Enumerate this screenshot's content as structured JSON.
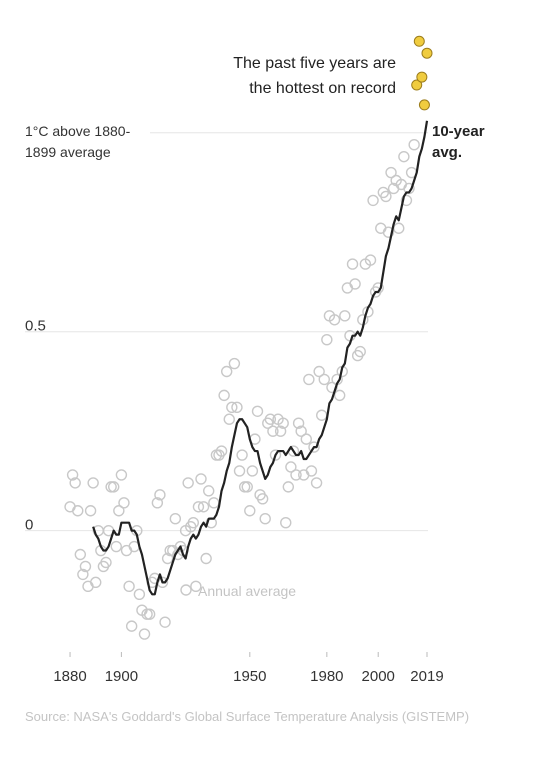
{
  "chart_data": {
    "type": "scatter_line",
    "x": [
      1880,
      1881,
      1882,
      1883,
      1884,
      1885,
      1886,
      1887,
      1888,
      1889,
      1890,
      1891,
      1892,
      1893,
      1894,
      1895,
      1896,
      1897,
      1898,
      1899,
      1900,
      1901,
      1902,
      1903,
      1904,
      1905,
      1906,
      1907,
      1908,
      1909,
      1910,
      1911,
      1912,
      1913,
      1914,
      1915,
      1916,
      1917,
      1918,
      1919,
      1920,
      1921,
      1922,
      1923,
      1924,
      1925,
      1926,
      1927,
      1928,
      1929,
      1930,
      1931,
      1932,
      1933,
      1934,
      1935,
      1936,
      1937,
      1938,
      1939,
      1940,
      1941,
      1942,
      1943,
      1944,
      1945,
      1946,
      1947,
      1948,
      1949,
      1950,
      1951,
      1952,
      1953,
      1954,
      1955,
      1956,
      1957,
      1958,
      1959,
      1960,
      1961,
      1962,
      1963,
      1964,
      1965,
      1966,
      1967,
      1968,
      1969,
      1970,
      1971,
      1972,
      1973,
      1974,
      1975,
      1976,
      1977,
      1978,
      1979,
      1980,
      1981,
      1982,
      1983,
      1984,
      1985,
      1986,
      1987,
      1988,
      1989,
      1990,
      1991,
      1992,
      1993,
      1994,
      1995,
      1996,
      1997,
      1998,
      1999,
      2000,
      2001,
      2002,
      2003,
      2004,
      2005,
      2006,
      2007,
      2008,
      2009,
      2010,
      2011,
      2012,
      2013,
      2014,
      2015,
      2016,
      2017,
      2018,
      2019
    ],
    "series": [
      {
        "name": "Annual average",
        "color": "#c8c8c8",
        "highlight_color": "#f0cc3f",
        "highlight_count": 5,
        "values": [
          0.06,
          0.14,
          0.12,
          0.05,
          -0.06,
          -0.11,
          -0.09,
          -0.14,
          0.05,
          0.12,
          -0.13,
          0.0,
          -0.05,
          -0.09,
          -0.08,
          0.0,
          0.11,
          0.11,
          -0.04,
          0.05,
          0.14,
          0.07,
          -0.05,
          -0.14,
          -0.24,
          -0.04,
          0.0,
          -0.16,
          -0.2,
          -0.26,
          -0.21,
          -0.21,
          -0.13,
          -0.12,
          0.07,
          0.09,
          -0.13,
          -0.23,
          -0.07,
          -0.05,
          -0.05,
          0.03,
          -0.06,
          -0.04,
          -0.05,
          0.0,
          0.12,
          0.01,
          0.02,
          -0.14,
          0.06,
          0.13,
          0.06,
          -0.07,
          0.1,
          0.02,
          0.07,
          0.19,
          0.19,
          0.2,
          0.34,
          0.4,
          0.28,
          0.31,
          0.42,
          0.31,
          0.15,
          0.19,
          0.11,
          0.11,
          0.05,
          0.15,
          0.23,
          0.3,
          0.09,
          0.08,
          0.03,
          0.27,
          0.28,
          0.25,
          0.19,
          0.28,
          0.25,
          0.27,
          0.02,
          0.11,
          0.16,
          0.2,
          0.14,
          0.27,
          0.25,
          0.14,
          0.23,
          0.38,
          0.15,
          0.21,
          0.12,
          0.4,
          0.29,
          0.38,
          0.48,
          0.54,
          0.36,
          0.53,
          0.38,
          0.34,
          0.4,
          0.54,
          0.61,
          0.49,
          0.67,
          0.62,
          0.44,
          0.45,
          0.53,
          0.67,
          0.55,
          0.68,
          0.83,
          0.6,
          0.61,
          0.76,
          0.85,
          0.84,
          0.75,
          0.9,
          0.86,
          0.88,
          0.76,
          0.87,
          0.94,
          0.83,
          0.86,
          0.9,
          0.97,
          1.12,
          1.23,
          1.14,
          1.07,
          1.2
        ]
      },
      {
        "name": "10-year avg.",
        "color": "#222222",
        "values": [
          null,
          null,
          null,
          null,
          null,
          null,
          null,
          null,
          null,
          0.01,
          -0.01,
          -0.02,
          -0.04,
          -0.05,
          -0.05,
          -0.04,
          -0.02,
          0.0,
          -0.01,
          -0.01,
          0.02,
          0.02,
          0.02,
          0.02,
          0.0,
          0.0,
          -0.01,
          -0.04,
          -0.06,
          -0.09,
          -0.12,
          -0.15,
          -0.16,
          -0.16,
          -0.13,
          -0.11,
          -0.13,
          -0.13,
          -0.12,
          -0.1,
          -0.08,
          -0.06,
          -0.05,
          -0.04,
          -0.06,
          -0.07,
          -0.04,
          -0.02,
          -0.01,
          -0.02,
          -0.01,
          0.01,
          0.02,
          0.01,
          0.03,
          0.03,
          0.03,
          0.04,
          0.06,
          0.1,
          0.12,
          0.15,
          0.17,
          0.21,
          0.24,
          0.27,
          0.28,
          0.28,
          0.27,
          0.26,
          0.23,
          0.21,
          0.2,
          0.2,
          0.17,
          0.15,
          0.13,
          0.14,
          0.16,
          0.17,
          0.19,
          0.2,
          0.2,
          0.2,
          0.19,
          0.2,
          0.21,
          0.2,
          0.19,
          0.19,
          0.2,
          0.18,
          0.18,
          0.19,
          0.2,
          0.21,
          0.21,
          0.23,
          0.24,
          0.26,
          0.28,
          0.32,
          0.33,
          0.35,
          0.37,
          0.38,
          0.41,
          0.42,
          0.46,
          0.47,
          0.49,
          0.49,
          0.5,
          0.49,
          0.51,
          0.54,
          0.56,
          0.57,
          0.59,
          0.6,
          0.6,
          0.61,
          0.65,
          0.69,
          0.71,
          0.74,
          0.77,
          0.79,
          0.78,
          0.81,
          0.84,
          0.85,
          0.85,
          0.86,
          0.88,
          0.9,
          0.94,
          0.96,
          0.99,
          1.03
        ]
      }
    ],
    "xlim": [
      1875,
      2022
    ],
    "xticks": [
      1880,
      1900,
      1950,
      1980,
      2000,
      2019
    ],
    "ylim": [
      -0.3,
      1.25
    ],
    "yticks": [
      0.0,
      0.5,
      {
        "value": 1,
        "label": "1°C above 1880-1899 average"
      }
    ],
    "grid": true,
    "annotation": "The past five years are the hottest on record",
    "source": "Source: NASA's Goddard's Global Surface Temperature Analysis (GISTEMP)"
  }
}
